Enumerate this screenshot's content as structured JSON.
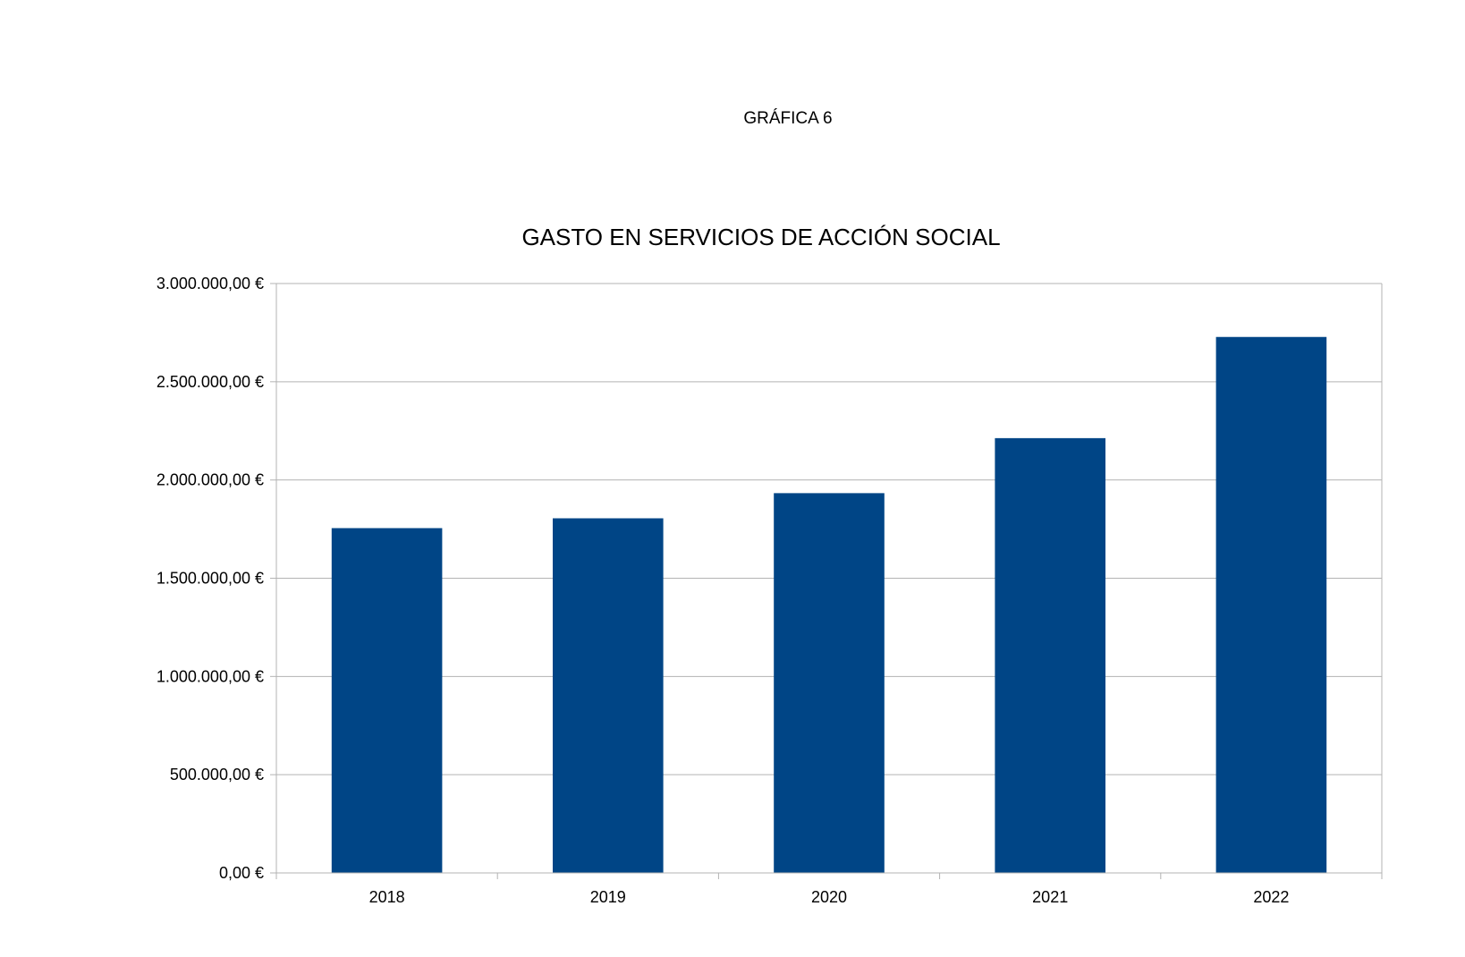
{
  "page": {
    "label": "GRÁFICA 6"
  },
  "chart_data": {
    "type": "bar",
    "title": "GASTO EN SERVICIOS DE ACCIÓN SOCIAL",
    "xlabel": "",
    "ylabel": "",
    "categories": [
      "2018",
      "2019",
      "2020",
      "2021",
      "2022"
    ],
    "values": [
      1755000,
      1805000,
      1933000,
      2213000,
      2728000
    ],
    "ylim": [
      0,
      3000000
    ],
    "yticks": [
      0,
      500000,
      1000000,
      1500000,
      2000000,
      2500000,
      3000000
    ],
    "ytick_labels": [
      "0,00 €",
      "500.000,00 €",
      "1.000.000,00 €",
      "1.500.000,00 €",
      "2.000.000,00 €",
      "2.500.000,00 €",
      "3.000.000,00 €"
    ],
    "grid": true,
    "legend": "none",
    "bar_color": "#004586",
    "grid_color": "#b3b3b3",
    "axis_color": "#b3b3b3"
  }
}
